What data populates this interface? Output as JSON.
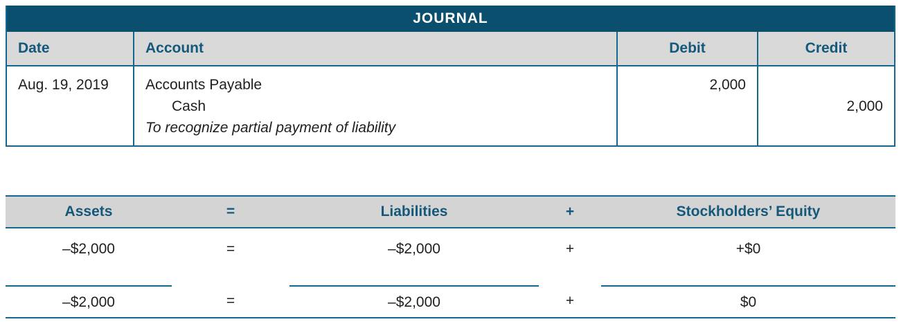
{
  "colors": {
    "title_bar_bg": "#0B4F6E",
    "title_bar_text": "#FFFFFF",
    "column_header_bg": "#D9D9D9",
    "heading_text": "#14587A",
    "border": "#14678F",
    "body_text": "#1F1F1F"
  },
  "journal": {
    "title": "JOURNAL",
    "columns": {
      "date": "Date",
      "account": "Account",
      "debit": "Debit",
      "credit": "Credit"
    },
    "entry": {
      "date": "Aug. 19, 2019",
      "debit_account": "Accounts Payable",
      "credit_account": "Cash",
      "memo": "To recognize partial payment of liability",
      "debit_amount": "2,000",
      "credit_amount": "2,000"
    }
  },
  "equation": {
    "header": {
      "assets": "Assets",
      "equals": "=",
      "liabilities": "Liabilities",
      "plus": "+",
      "equity": "Stockholders’ Equity"
    },
    "change_row": {
      "assets": "–$2,000",
      "equals": "=",
      "liabilities": "–$2,000",
      "plus": "+",
      "equity": "+$0"
    },
    "total_row": {
      "assets": "–$2,000",
      "equals": "=",
      "liabilities": "–$2,000",
      "plus": "+",
      "equity": "$0"
    }
  }
}
